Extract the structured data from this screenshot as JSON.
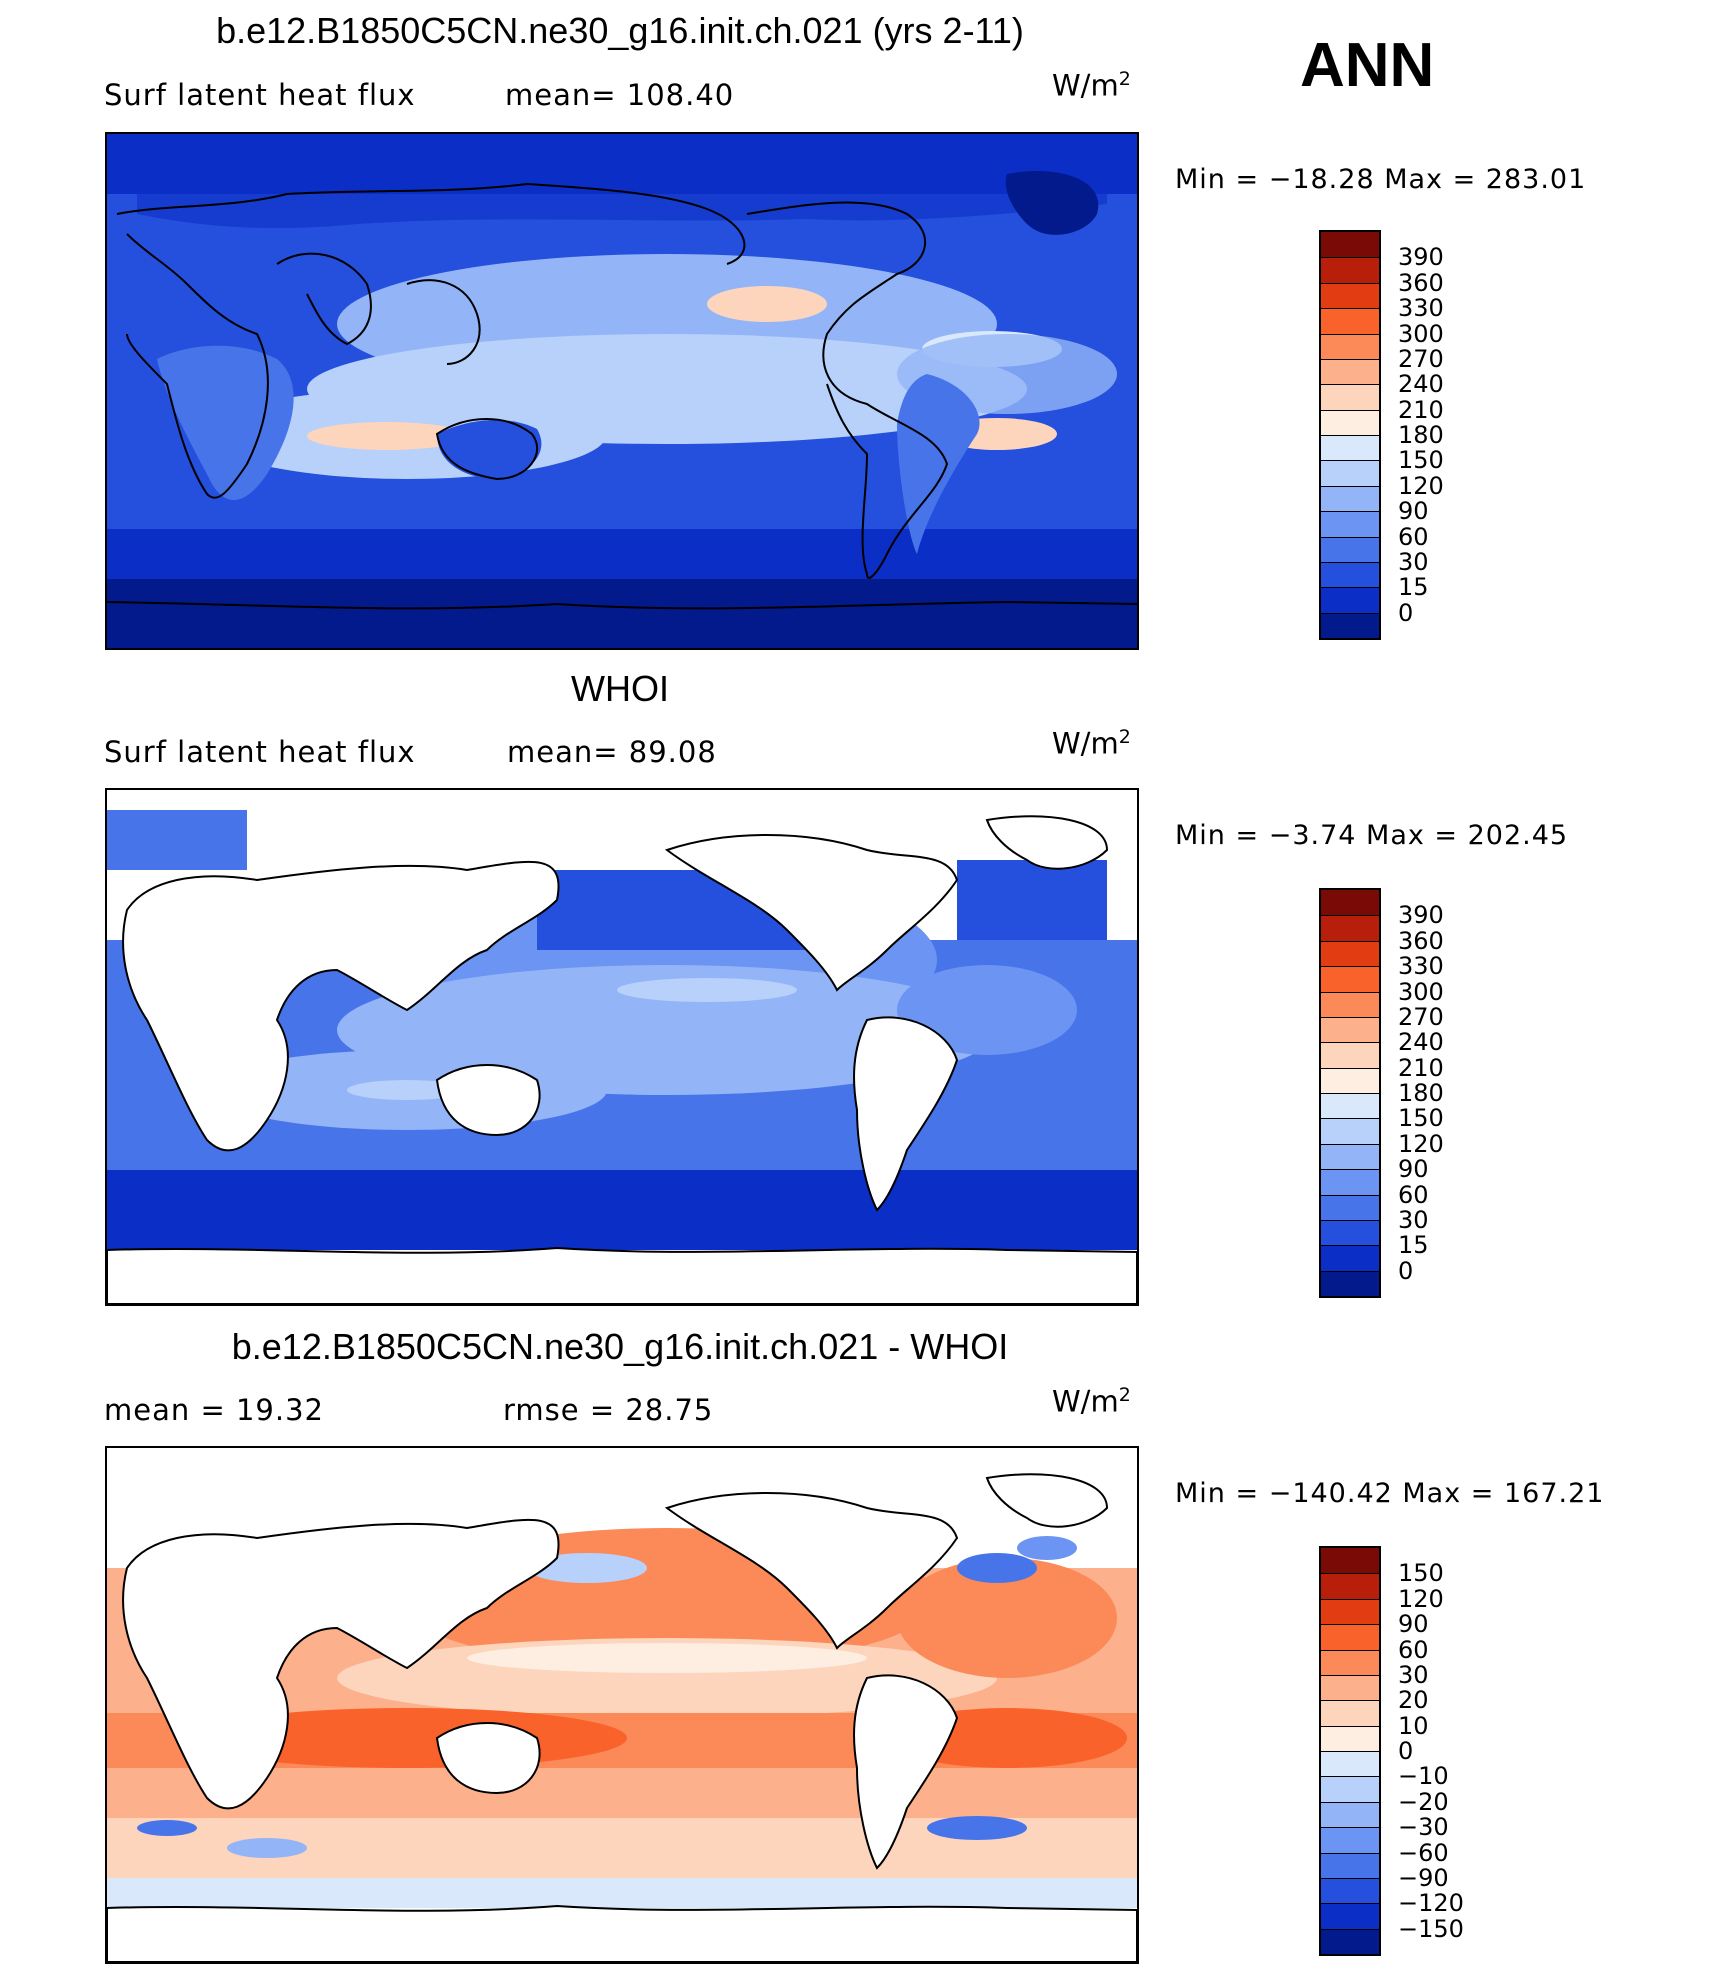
{
  "season": "ANN",
  "panels": [
    {
      "id": "model",
      "title": "b.e12.B1850C5CN.ne30_g16.init.ch.021 (yrs 2-11)",
      "left_label": "Surf latent heat flux",
      "right_label": "mean= 108.40",
      "units": "W/m",
      "units_sup": "2",
      "minmax": "Min = −18.28 Max = 283.01",
      "cbar_levels": [
        "390",
        "360",
        "330",
        "300",
        "270",
        "240",
        "210",
        "180",
        "150",
        "120",
        "90",
        "60",
        "30",
        "15",
        "0"
      ],
      "cbar_colors": [
        "#7a0a06",
        "#b71f0a",
        "#e23c12",
        "#f9622a",
        "#fb8a58",
        "#fcb08c",
        "#fdd5bd",
        "#fdeee1",
        "#d9e8fb",
        "#b7d1fa",
        "#93b5f7",
        "#6c94f2",
        "#4874ea",
        "#2450dd",
        "#0b2fc6",
        "#021a8c"
      ]
    },
    {
      "id": "obs",
      "title": "WHOI",
      "left_label": "Surf latent heat flux",
      "right_label": "mean=  89.08",
      "units": "W/m",
      "units_sup": "2",
      "minmax": "Min =  −3.74 Max = 202.45",
      "cbar_levels": [
        "390",
        "360",
        "330",
        "300",
        "270",
        "240",
        "210",
        "180",
        "150",
        "120",
        "90",
        "60",
        "30",
        "15",
        "0"
      ],
      "cbar_colors": [
        "#7a0a06",
        "#b71f0a",
        "#e23c12",
        "#f9622a",
        "#fb8a58",
        "#fcb08c",
        "#fdd5bd",
        "#fdeee1",
        "#d9e8fb",
        "#b7d1fa",
        "#93b5f7",
        "#6c94f2",
        "#4874ea",
        "#2450dd",
        "#0b2fc6",
        "#021a8c"
      ]
    },
    {
      "id": "diff",
      "title": "b.e12.B1850C5CN.ne30_g16.init.ch.021 - WHOI",
      "left_label": "mean =   19.32",
      "right_label": "rmse =   28.75",
      "units": "W/m",
      "units_sup": "2",
      "minmax": "Min = −140.42 Max = 167.21",
      "cbar_levels": [
        "150",
        "120",
        "90",
        "60",
        "30",
        "20",
        "10",
        "0",
        "−10",
        "−20",
        "−30",
        "−60",
        "−90",
        "−120",
        "−150"
      ],
      "cbar_colors": [
        "#7a0a06",
        "#b71f0a",
        "#e23c12",
        "#f9622a",
        "#fb8a58",
        "#fcb08c",
        "#fdd5bd",
        "#fdeee1",
        "#d9e8fb",
        "#b7d1fa",
        "#93b5f7",
        "#6c94f2",
        "#4874ea",
        "#2450dd",
        "#0b2fc6",
        "#021a8c"
      ]
    }
  ],
  "chart_data": [
    {
      "type": "heatmap",
      "title": "b.e12.B1850C5CN.ne30_g16.init.ch.021 (yrs 2-11)",
      "variable": "Surf latent heat flux",
      "units": "W/m2",
      "mean": 108.4,
      "min": -18.28,
      "max": 283.01,
      "contour_levels": [
        0,
        15,
        30,
        60,
        90,
        120,
        150,
        180,
        210,
        240,
        270,
        300,
        330,
        360,
        390
      ],
      "grid": false
    },
    {
      "type": "heatmap",
      "title": "WHOI",
      "variable": "Surf latent heat flux",
      "units": "W/m2",
      "mean": 89.08,
      "min": -3.74,
      "max": 202.45,
      "contour_levels": [
        0,
        15,
        30,
        60,
        90,
        120,
        150,
        180,
        210,
        240,
        270,
        300,
        330,
        360,
        390
      ],
      "grid": false
    },
    {
      "type": "heatmap",
      "title": "b.e12.B1850C5CN.ne30_g16.init.ch.021 - WHOI",
      "units": "W/m2",
      "mean": 19.32,
      "rmse": 28.75,
      "min": -140.42,
      "max": 167.21,
      "contour_levels": [
        -150,
        -120,
        -90,
        -60,
        -30,
        -20,
        -10,
        0,
        10,
        20,
        30,
        60,
        90,
        120,
        150
      ],
      "grid": false
    }
  ]
}
